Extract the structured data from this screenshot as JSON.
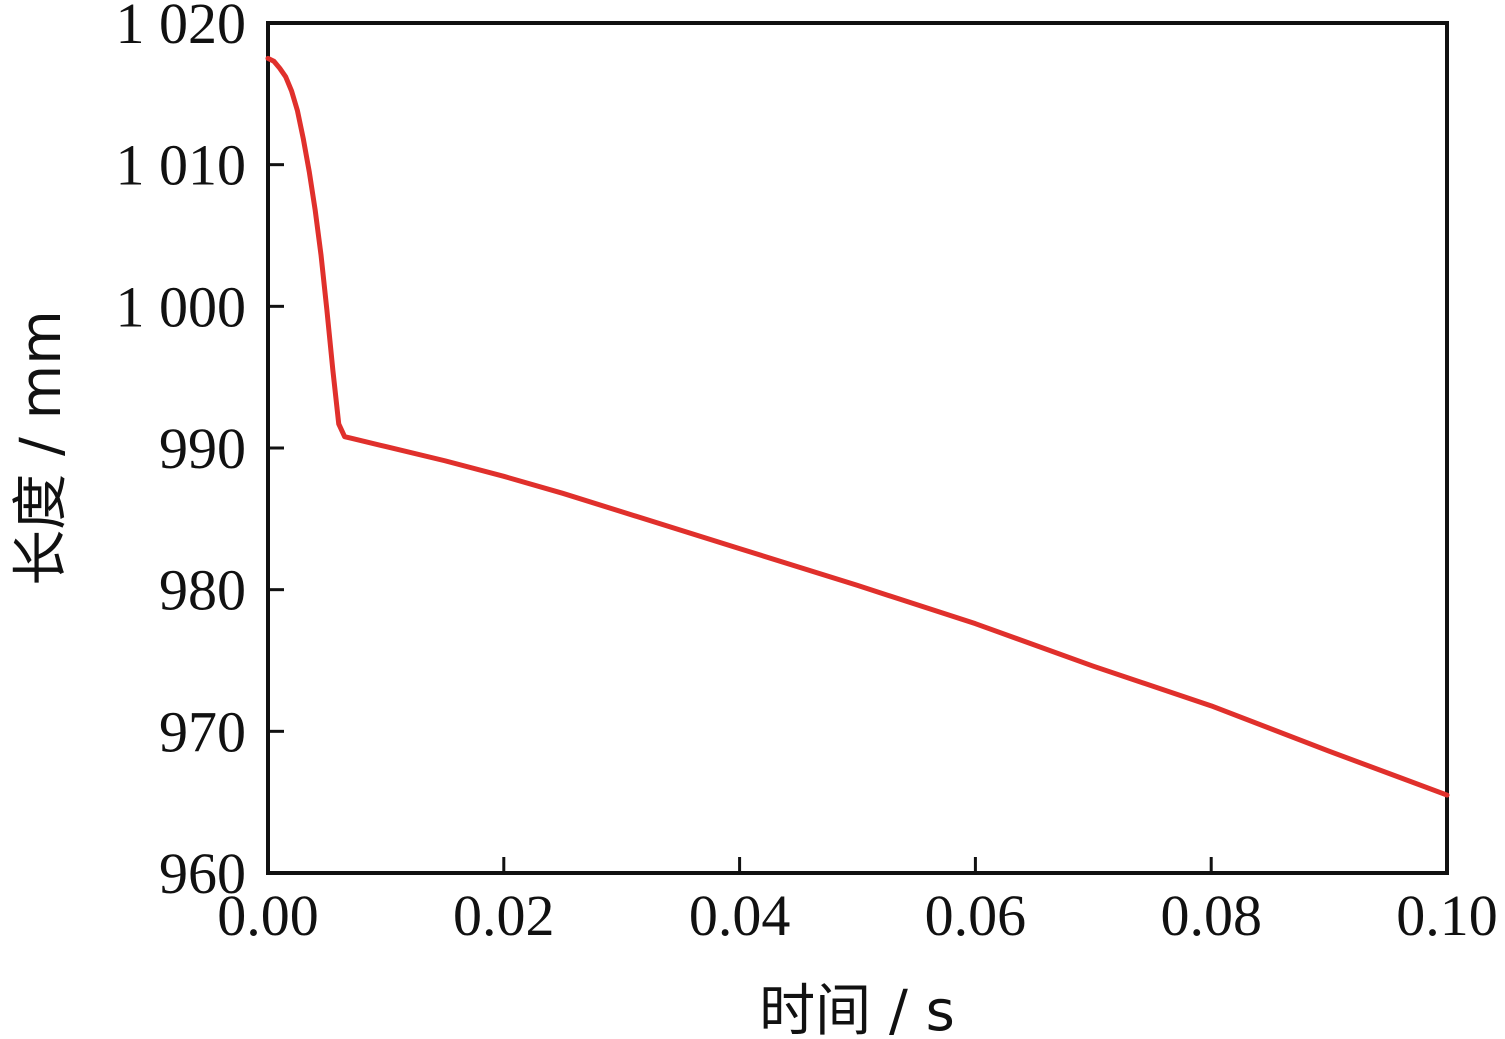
{
  "chart_data": {
    "type": "line",
    "title": "",
    "xlabel": "时间 / s",
    "ylabel": "长度 / mm",
    "xlim": [
      0,
      0.1
    ],
    "ylim": [
      960,
      1020
    ],
    "xticks": [
      0.0,
      0.02,
      0.04,
      0.06,
      0.08,
      0.1
    ],
    "xtick_labels": [
      "0.00",
      "0.02",
      "0.04",
      "0.06",
      "0.08",
      "0.10"
    ],
    "yticks": [
      960,
      970,
      980,
      990,
      1000,
      1010,
      1020
    ],
    "ytick_labels": [
      "960",
      "970",
      "980",
      "990",
      "1 000",
      "1 010",
      "1 020"
    ],
    "grid": false,
    "legend": "none",
    "series": [
      {
        "color": "#e0302c",
        "x": [
          0.0,
          0.0005,
          0.001,
          0.0015,
          0.002,
          0.0025,
          0.003,
          0.0035,
          0.004,
          0.0045,
          0.005,
          0.0055,
          0.006,
          0.0065,
          0.007,
          0.01,
          0.015,
          0.02,
          0.025,
          0.03,
          0.04,
          0.05,
          0.06,
          0.07,
          0.08,
          0.09,
          0.1
        ],
        "y": [
          1017.5,
          1017.3,
          1016.8,
          1016.2,
          1015.2,
          1013.8,
          1011.8,
          1009.5,
          1006.8,
          1003.6,
          999.7,
          995.5,
          991.7,
          990.8,
          990.7,
          990.1,
          989.1,
          988.0,
          986.8,
          985.5,
          982.9,
          980.3,
          977.6,
          974.6,
          971.8,
          968.6,
          965.5
        ]
      }
    ]
  }
}
